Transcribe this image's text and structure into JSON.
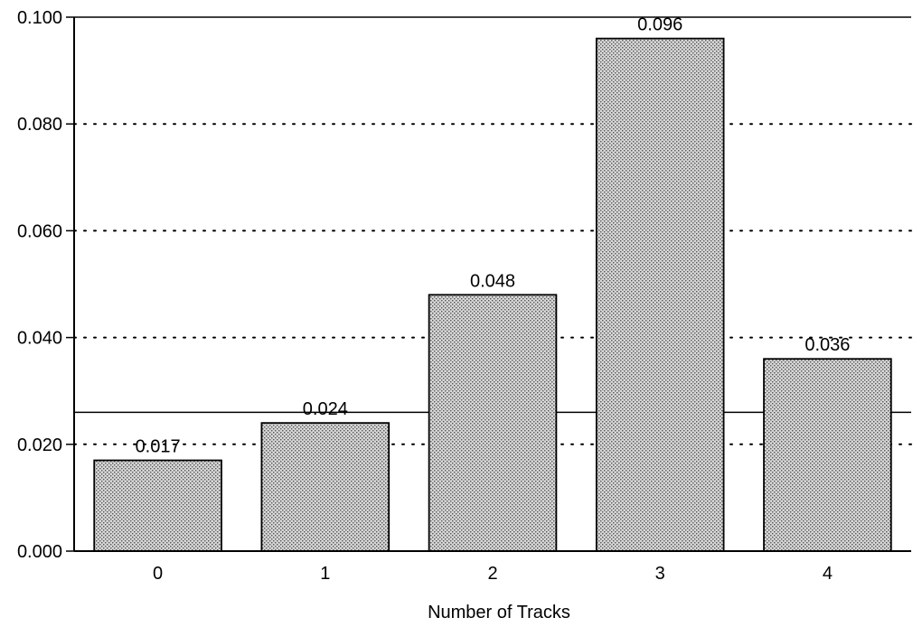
{
  "chart_data": {
    "type": "bar",
    "title": "",
    "xlabel": "Number of Tracks",
    "ylabel": "",
    "categories": [
      "0",
      "1",
      "2",
      "3",
      "4"
    ],
    "values": [
      0.017,
      0.024,
      0.048,
      0.096,
      0.036
    ],
    "data_labels": [
      "0.017",
      "0.024",
      "0.048",
      "0.096",
      "0.036"
    ],
    "ylim": [
      0,
      0.1
    ],
    "yticks": [
      0.0,
      0.02,
      0.04,
      0.06,
      0.08,
      0.1
    ],
    "ytick_labels": [
      "0.000",
      "0.020",
      "0.040",
      "0.060",
      "0.080",
      "0.100"
    ],
    "grid": "horizontal dotted",
    "reference_line": 0.026,
    "bar_fill": "stippled grey",
    "colors": {
      "bar": "#bdbdbd",
      "stipple_dark": "#555555",
      "axis": "#000000"
    }
  }
}
